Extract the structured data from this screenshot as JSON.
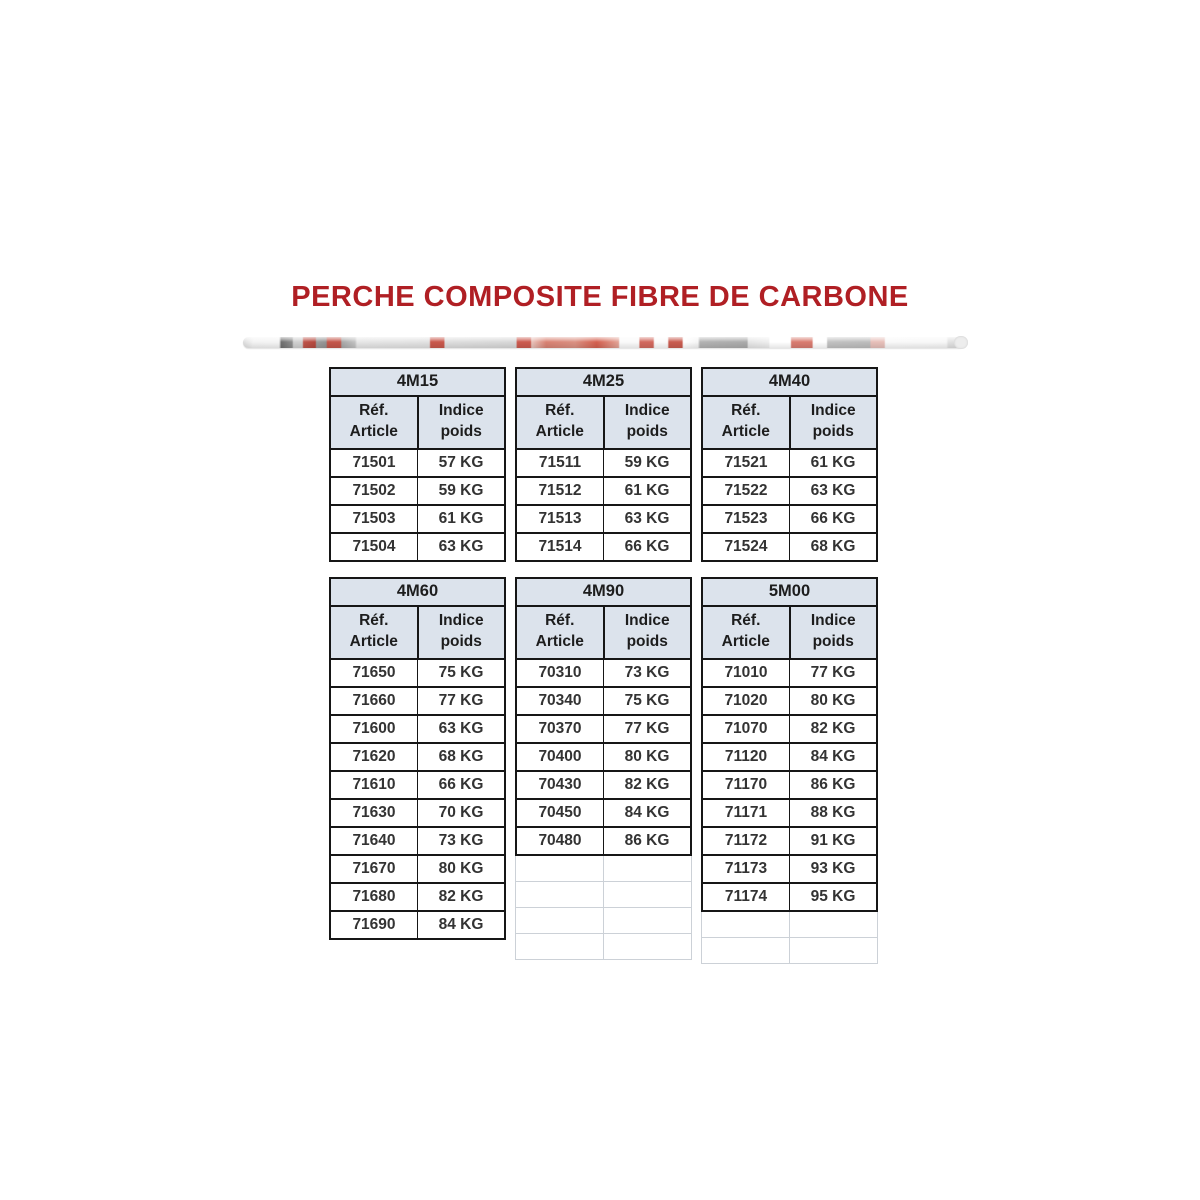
{
  "title": "PERCHE COMPOSITE FIBRE DE CARBONE",
  "colors": {
    "title_red": "#b01f24",
    "header_bg": "#dce3ec",
    "border": "#161616",
    "faint_grid": "#ccd1d7"
  },
  "col_headers": {
    "ref": "Réf.\nArticle",
    "weight": "Indice\npoids"
  },
  "bands": [
    {
      "groups": [
        {
          "model": "4M15",
          "ghost_rows": 0,
          "rows": [
            [
              "71501",
              "57 KG"
            ],
            [
              "71502",
              "59 KG"
            ],
            [
              "71503",
              "61 KG"
            ],
            [
              "71504",
              "63 KG"
            ]
          ]
        },
        {
          "model": "4M25",
          "ghost_rows": 0,
          "rows": [
            [
              "71511",
              "59 KG"
            ],
            [
              "71512",
              "61 KG"
            ],
            [
              "71513",
              "63 KG"
            ],
            [
              "71514",
              "66 KG"
            ]
          ]
        },
        {
          "model": "4M40",
          "ghost_rows": 0,
          "rows": [
            [
              "71521",
              "61 KG"
            ],
            [
              "71522",
              "63 KG"
            ],
            [
              "71523",
              "66 KG"
            ],
            [
              "71524",
              "68 KG"
            ]
          ]
        }
      ]
    },
    {
      "groups": [
        {
          "model": "4M60",
          "ghost_rows": 0,
          "rows": [
            [
              "71650",
              "75 KG"
            ],
            [
              "71660",
              "77 KG"
            ],
            [
              "71600",
              "63 KG"
            ],
            [
              "71620",
              "68 KG"
            ],
            [
              "71610",
              "66 KG"
            ],
            [
              "71630",
              "70 KG"
            ],
            [
              "71640",
              "73 KG"
            ],
            [
              "71670",
              "80 KG"
            ],
            [
              "71680",
              "82 KG"
            ],
            [
              "71690",
              "84 KG"
            ]
          ]
        },
        {
          "model": "4M90",
          "ghost_rows": 4,
          "rows": [
            [
              "70310",
              "73 KG"
            ],
            [
              "70340",
              "75 KG"
            ],
            [
              "70370",
              "77 KG"
            ],
            [
              "70400",
              "80 KG"
            ],
            [
              "70430",
              "82 KG"
            ],
            [
              "70450",
              "84 KG"
            ],
            [
              "70480",
              "86 KG"
            ]
          ]
        },
        {
          "model": "5M00",
          "ghost_rows": 2,
          "rows": [
            [
              "71010",
              "77 KG"
            ],
            [
              "71020",
              "80 KG"
            ],
            [
              "71070",
              "82 KG"
            ],
            [
              "71120",
              "84 KG"
            ],
            [
              "71170",
              "86 KG"
            ],
            [
              "71171",
              "88 KG"
            ],
            [
              "71172",
              "91 KG"
            ],
            [
              "71173",
              "93 KG"
            ],
            [
              "71174",
              "95 KG"
            ]
          ]
        }
      ]
    }
  ]
}
